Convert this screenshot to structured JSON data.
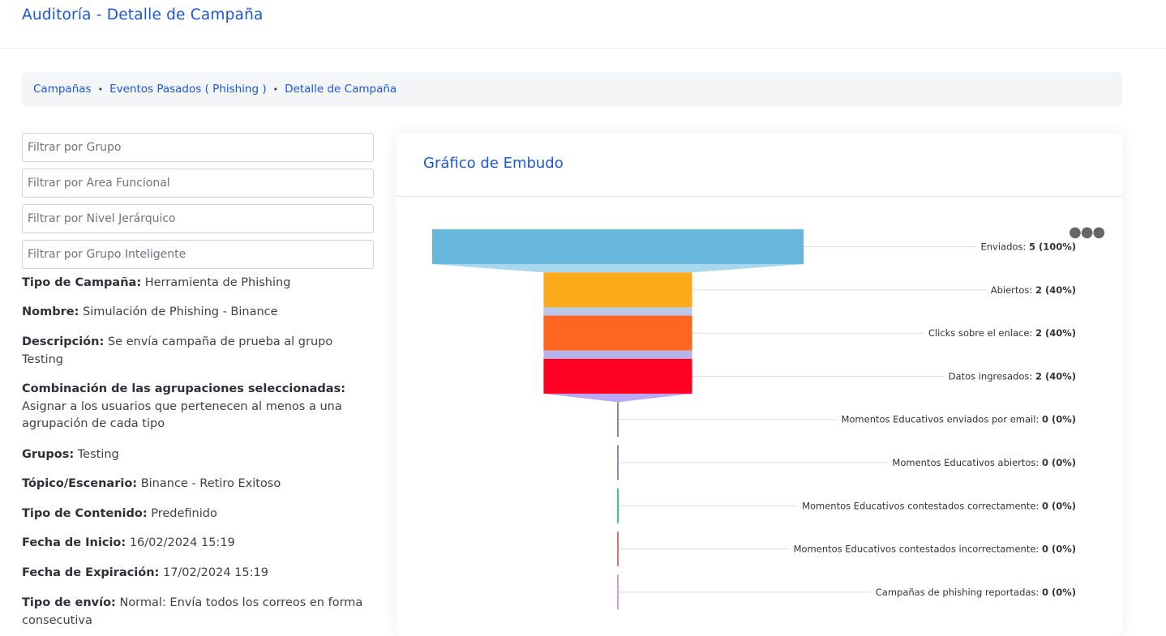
{
  "header": {
    "title": "Auditoría - Detalle de Campaña"
  },
  "breadcrumb": {
    "items": [
      "Campañas",
      "Eventos Pasados ( Phishing )",
      "Detalle de Campaña"
    ],
    "separator": "•"
  },
  "filters": {
    "group_placeholder": "Filtrar por Grupo",
    "area_placeholder": "Filtrar por Área Funcional",
    "level_placeholder": "Filtrar por Nivel Jerárquico",
    "smart_group_placeholder": "Filtrar por Grupo Inteligente"
  },
  "details": [
    {
      "label": "Tipo de Campaña:",
      "value": "Herramienta de Phishing"
    },
    {
      "label": "Nombre:",
      "value": "Simulación de Phishing - Binance"
    },
    {
      "label": "Descripción:",
      "value": "Se envía campaña de prueba al grupo Testing"
    },
    {
      "label": "Combinación de las agrupaciones seleccionadas:",
      "value": "Asignar a los usuarios que pertenecen al menos a una agrupación de cada tipo"
    },
    {
      "label": "Grupos:",
      "value": "Testing"
    },
    {
      "label": "Tópico/Escenario:",
      "value": "Binance - Retiro Exitoso"
    },
    {
      "label": "Tipo de Contenido:",
      "value": "Predefinido"
    },
    {
      "label": "Fecha de Inicio:",
      "value": "16/02/2024 15:19"
    },
    {
      "label": "Fecha de Expiración:",
      "value": "17/02/2024 15:19"
    },
    {
      "label": "Tipo de envío:",
      "value": "Normal: Envía todos los correos en forma consecutiva"
    }
  ],
  "chart_card": {
    "title": "Gráfico de Embudo",
    "menu_icon": "more-horizontal-icon"
  },
  "chart_data": {
    "type": "funnel",
    "max": 5,
    "stages": [
      {
        "name": "Enviados",
        "value": 5,
        "pct": "(100%)",
        "color": "#69b6dc"
      },
      {
        "name": "Abiertos",
        "value": 2,
        "pct": "(40%)",
        "color": "#fdaa1a"
      },
      {
        "name": "Clicks sobre el enlace",
        "value": 2,
        "pct": "(40%)",
        "color": "#fe6520"
      },
      {
        "name": "Datos ingresados",
        "value": 2,
        "pct": "(40%)",
        "color": "#fe0022"
      },
      {
        "name": "Momentos Educativos enviados por email",
        "value": 0,
        "pct": "(0%)",
        "color": "#7a8fae"
      },
      {
        "name": "Momentos Educativos abiertos",
        "value": 0,
        "pct": "(0%)",
        "color": "#8a87c8"
      },
      {
        "name": "Momentos Educativos contestados correctamente",
        "value": 0,
        "pct": "(0%)",
        "color": "#35c98e"
      },
      {
        "name": "Momentos Educativos contestados incorrectamente",
        "value": 0,
        "pct": "(0%)",
        "color": "#e2716f"
      },
      {
        "name": "Campañas de phishing reportadas",
        "value": 0,
        "pct": "(0%)",
        "color": "#d89ad8"
      }
    ],
    "connector_colors": [
      "#a9d7ee",
      "#b9c7e8",
      "#b6b3ea",
      "#b8a8f5"
    ]
  }
}
